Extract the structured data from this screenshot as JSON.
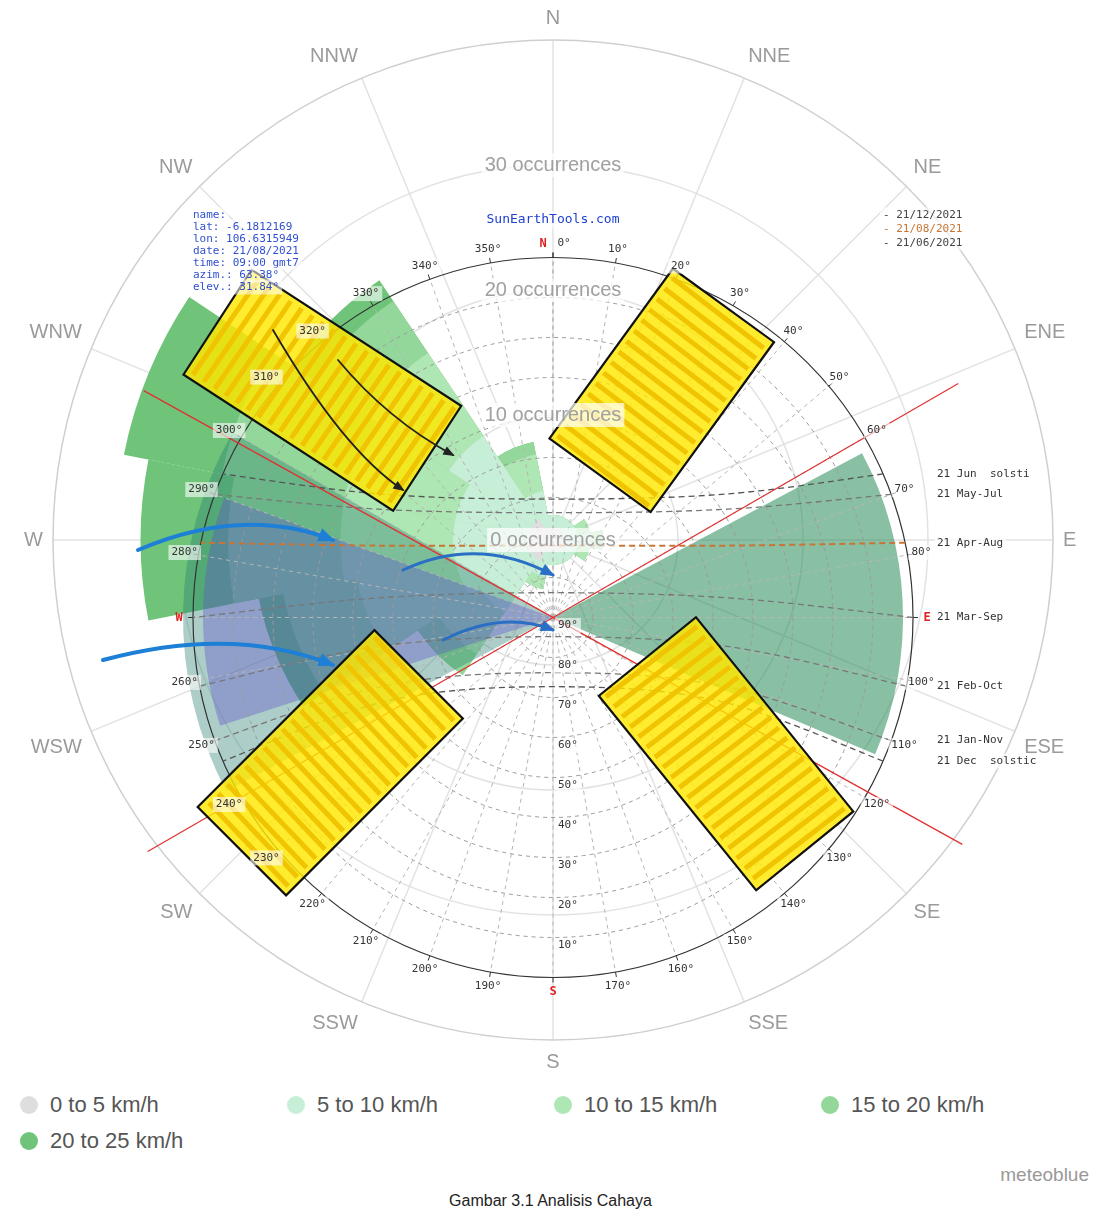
{
  "chart_data": {
    "type": "polarArea",
    "categories": [
      "N",
      "NNE",
      "NE",
      "ENE",
      "E",
      "ESE",
      "SE",
      "SSE",
      "S",
      "SSW",
      "SW",
      "WSW",
      "W",
      "WNW",
      "NW",
      "NNW"
    ],
    "series": [
      {
        "name": "0 to 5 km/h",
        "color": "#dedede",
        "values": [
          1,
          1,
          1,
          1,
          1,
          1,
          1,
          1,
          1,
          1,
          2,
          2,
          2,
          2,
          2,
          1
        ]
      },
      {
        "name": "5 to 10 km/h",
        "color": "#c7efd8",
        "values": [
          1,
          1,
          1,
          1,
          2,
          1,
          1,
          1,
          1,
          2,
          5,
          6,
          6,
          6,
          8,
          3
        ]
      },
      {
        "name": "10 to 15 km/h",
        "color": "#aee6b4",
        "values": [
          0,
          0,
          0,
          1,
          1,
          1,
          0,
          0,
          0,
          1,
          4,
          8,
          9,
          9,
          8,
          3
        ]
      },
      {
        "name": "15 to 20 km/h",
        "color": "#93d89a",
        "values": [
          0,
          0,
          0,
          0,
          0,
          0,
          0,
          0,
          0,
          0,
          2,
          6,
          9,
          10,
          5,
          1
        ]
      },
      {
        "name": "20 to 25 km/h",
        "color": "#6fc47a",
        "values": [
          0,
          0,
          0,
          0,
          0,
          0,
          0,
          0,
          0,
          0,
          0,
          2,
          7,
          8,
          2,
          0
        ]
      }
    ],
    "stacked": true,
    "rlim": [
      0,
      40
    ],
    "rticks": [
      {
        "value": 0,
        "label": "0 occurrences"
      },
      {
        "value": 10,
        "label": "10 occurrences"
      },
      {
        "value": 20,
        "label": "20 occurrences"
      },
      {
        "value": 30,
        "label": "30 occurrences"
      }
    ],
    "grid": true,
    "legend": "bottom",
    "source": "meteoblue",
    "caption": "Gambar 3.1 Analisis Cahaya",
    "sun_path": {
      "site": "SunEarthTools.com",
      "info": [
        "name:",
        "lat: -6.1812169",
        "lon: 106.6315949",
        "date: 21/08/2021",
        "time: 09:00 gmt7",
        "azim.: 63.38°",
        "elev.: 31.84°"
      ],
      "dates": [
        {
          "label": "- 21/12/2021",
          "color": "#444444"
        },
        {
          "label": "- 21/08/2021",
          "color": "#c87533"
        },
        {
          "label": "- 21/06/2021",
          "color": "#444444"
        }
      ],
      "azimuth_ticks": [
        {
          "value": 0,
          "label": "0°"
        },
        {
          "value": 10,
          "label": "10°"
        },
        {
          "value": 20,
          "label": "20°"
        },
        {
          "value": 30,
          "label": "30°"
        },
        {
          "value": 40,
          "label": "40°"
        },
        {
          "value": 50,
          "label": "50°"
        },
        {
          "value": 60,
          "label": "60°"
        },
        {
          "value": 70,
          "label": "70°"
        },
        {
          "value": 80,
          "label": "80°"
        },
        {
          "value": 100,
          "label": "100°"
        },
        {
          "value": 110,
          "label": "110°"
        },
        {
          "value": 120,
          "label": "120°"
        },
        {
          "value": 130,
          "label": "130°"
        },
        {
          "value": 140,
          "label": "140°"
        },
        {
          "value": 150,
          "label": "150°"
        },
        {
          "value": 160,
          "label": "160°"
        },
        {
          "value": 170,
          "label": "170°"
        },
        {
          "value": 190,
          "label": "190°"
        },
        {
          "value": 200,
          "label": "200°"
        },
        {
          "value": 210,
          "label": "210°"
        },
        {
          "value": 220,
          "label": "220°"
        },
        {
          "value": 230,
          "label": "230°"
        },
        {
          "value": 240,
          "label": "240°"
        },
        {
          "value": 250,
          "label": "250°"
        },
        {
          "value": 260,
          "label": "260°"
        },
        {
          "value": 280,
          "label": "280°"
        },
        {
          "value": 290,
          "label": "290°"
        },
        {
          "value": 300,
          "label": "300°"
        },
        {
          "value": 310,
          "label": "310°"
        },
        {
          "value": 320,
          "label": "320°"
        },
        {
          "value": 330,
          "label": "330°"
        },
        {
          "value": 340,
          "label": "340°"
        },
        {
          "value": 350,
          "label": "350°"
        }
      ],
      "cardinals": [
        {
          "value": 0,
          "label": "N"
        },
        {
          "value": 90,
          "label": "E"
        },
        {
          "value": 180,
          "label": "S"
        },
        {
          "value": 270,
          "label": "W"
        }
      ],
      "elevation_lim": [
        0,
        90
      ],
      "elevation_ticks": [
        {
          "value": 10,
          "label": "10°"
        },
        {
          "value": 20,
          "label": "20°"
        },
        {
          "value": 30,
          "label": "30°"
        },
        {
          "value": 40,
          "label": "40°"
        },
        {
          "value": 50,
          "label": "50°"
        },
        {
          "value": 60,
          "label": "60°"
        },
        {
          "value": 70,
          "label": "70°"
        },
        {
          "value": 80,
          "label": "80°"
        },
        {
          "value": 90,
          "label": "90°"
        }
      ],
      "curves": [
        {
          "name": "21 Jun  solsti",
          "color": "#555555",
          "line_style": "dashed",
          "points": [
            [
              66.5,
              0
            ],
            [
              54.4,
              37.0
            ],
            [
              0,
              60.4
            ],
            [
              305.6,
              37.0
            ],
            [
              293.5,
              0
            ]
          ]
        },
        {
          "name": "21 May-Jul",
          "color": "#777777",
          "line_style": "dashed",
          "points": [
            [
              70,
              0
            ],
            [
              58.2,
              38.6
            ],
            [
              0,
              63.8
            ],
            [
              301.8,
              38.6
            ],
            [
              290,
              0
            ]
          ]
        },
        {
          "name": "21 Apr-Aug",
          "color": "#c87533",
          "line_style": "dashed",
          "points": [
            [
              78,
              0
            ],
            [
              68.1,
              41.8
            ],
            [
              0,
              72
            ],
            [
              291.9,
              41.8
            ],
            [
              282,
              0
            ]
          ]
        },
        {
          "name": "21 Mar-Sep",
          "color": "#777777",
          "line_style": "dashed",
          "points": [
            [
              90,
              0
            ],
            [
              83.9,
              44.7
            ],
            [
              0,
              83.8
            ],
            [
              276.1,
              44.7
            ],
            [
              270,
              0
            ]
          ]
        },
        {
          "name": "21 Feb-Oct",
          "color": "#777777",
          "line_style": "dashed",
          "points": [
            [
              101,
              0
            ],
            [
              99.4,
              45.3
            ],
            [
              180,
              85.2
            ],
            [
              260.6,
              45.3
            ],
            [
              259,
              0
            ]
          ]
        },
        {
          "name": "21 Jan-Nov",
          "color": "#777777",
          "line_style": "dashed",
          "points": [
            [
              110,
              0
            ],
            [
              112,
              44.2
            ],
            [
              180,
              76.2
            ],
            [
              248,
              44.2
            ],
            [
              250,
              0
            ]
          ]
        },
        {
          "name": "21 Dec  solstic",
          "color": "#555555",
          "line_style": "dashed",
          "points": [
            [
              113.5,
              0
            ],
            [
              116.7,
              43.5
            ],
            [
              180,
              72.7
            ],
            [
              243.3,
              43.5
            ],
            [
              246.5,
              0
            ]
          ]
        }
      ],
      "azimuth_lines": [
        60,
        119
      ]
    }
  }
}
